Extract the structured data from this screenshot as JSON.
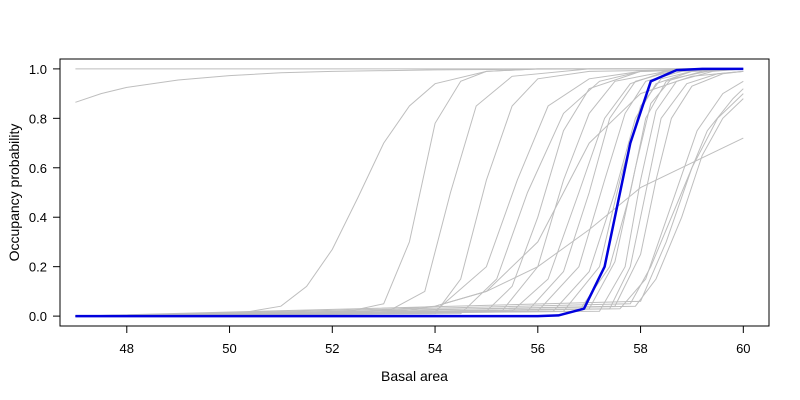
{
  "chart_data": {
    "type": "line",
    "title": "",
    "xlabel": "Basal area",
    "ylabel": "Occupancy probability",
    "xlim": [
      46.7,
      60.5
    ],
    "ylim": [
      -0.04,
      1.04
    ],
    "xticks": [
      48,
      50,
      52,
      54,
      56,
      58,
      60
    ],
    "xtick_labels": [
      "48",
      "50",
      "52",
      "54",
      "56",
      "58",
      "60"
    ],
    "yticks": [
      0.0,
      0.2,
      0.4,
      0.6,
      0.8,
      1.0
    ],
    "ytick_labels": [
      "0.0",
      "0.2",
      "0.4",
      "0.6",
      "0.8",
      "1.0"
    ],
    "grid": false,
    "legend": "none",
    "colors": {
      "mean": "#0000dd",
      "samples": "#bebebe"
    },
    "mean_curve": {
      "x": [
        47.0,
        48.0,
        49.0,
        50.0,
        51.0,
        52.0,
        53.0,
        54.0,
        55.0,
        55.5,
        56.0,
        56.4,
        56.9,
        57.3,
        57.8,
        58.2,
        58.7,
        59.2,
        60.0
      ],
      "y": [
        0.0,
        0.0,
        0.0,
        0.0,
        0.0,
        0.0,
        0.0,
        0.0,
        0.0,
        0.0,
        0.0,
        0.003,
        0.03,
        0.2,
        0.7,
        0.95,
        0.995,
        1.0,
        1.0
      ]
    },
    "sample_curves": [
      {
        "x": [
          47.0,
          47.5,
          48.0,
          49.0,
          50.0,
          51.0,
          52.0,
          54.0,
          56.0,
          58.0,
          60.0
        ],
        "y": [
          0.865,
          0.9,
          0.925,
          0.955,
          0.973,
          0.984,
          0.99,
          0.996,
          0.999,
          1.0,
          1.0
        ]
      },
      {
        "x": [
          47.0,
          60.0
        ],
        "y": [
          1.0,
          1.0
        ]
      },
      {
        "x": [
          47.0,
          50.0,
          51.0,
          51.5,
          52.0,
          52.5,
          53.0,
          53.5,
          54.0,
          55.0,
          56.0,
          60.0
        ],
        "y": [
          0.0,
          0.005,
          0.04,
          0.12,
          0.27,
          0.48,
          0.7,
          0.85,
          0.94,
          0.99,
          1.0,
          1.0
        ]
      },
      {
        "x": [
          47.0,
          52.0,
          53.0,
          53.5,
          54.0,
          54.5,
          55.0,
          56.0,
          60.0
        ],
        "y": [
          0.0,
          0.005,
          0.05,
          0.3,
          0.78,
          0.95,
          0.99,
          1.0,
          1.0
        ]
      },
      {
        "x": [
          47.0,
          53.0,
          53.8,
          54.3,
          54.8,
          55.5,
          57.0,
          60.0
        ],
        "y": [
          0.0,
          0.01,
          0.1,
          0.5,
          0.85,
          0.97,
          1.0,
          1.0
        ]
      },
      {
        "x": [
          47.0,
          54.0,
          54.5,
          55.0,
          55.5,
          56.0,
          57.0,
          60.0
        ],
        "y": [
          0.0,
          0.01,
          0.15,
          0.55,
          0.85,
          0.96,
          0.99,
          1.0
        ]
      },
      {
        "x": [
          47.0,
          54.0,
          55.0,
          55.6,
          56.2,
          57.0,
          58.0,
          60.0
        ],
        "y": [
          0.0,
          0.02,
          0.2,
          0.55,
          0.85,
          0.96,
          0.99,
          1.0
        ]
      },
      {
        "x": [
          47.0,
          53.0,
          54.0,
          55.0,
          56.0,
          57.0,
          58.0,
          59.0,
          60.0
        ],
        "y": [
          0.0,
          0.01,
          0.04,
          0.1,
          0.2,
          0.35,
          0.52,
          0.62,
          0.72
        ]
      },
      {
        "x": [
          47.0,
          54.5,
          55.2,
          55.8,
          56.5,
          57.2,
          58.0,
          60.0
        ],
        "y": [
          0.0,
          0.01,
          0.15,
          0.5,
          0.82,
          0.95,
          0.99,
          1.0
        ]
      },
      {
        "x": [
          47.0,
          55.0,
          55.5,
          56.0,
          56.5,
          57.0,
          58.0,
          60.0
        ],
        "y": [
          0.0,
          0.02,
          0.12,
          0.4,
          0.75,
          0.92,
          0.99,
          1.0
        ]
      },
      {
        "x": [
          47.0,
          55.3,
          56.0,
          56.5,
          57.0,
          57.5,
          58.5,
          60.0
        ],
        "y": [
          0.0,
          0.02,
          0.2,
          0.55,
          0.82,
          0.95,
          0.99,
          1.0
        ]
      },
      {
        "x": [
          47.0,
          55.5,
          56.2,
          56.8,
          57.3,
          57.8,
          58.5,
          60.0
        ],
        "y": [
          0.0,
          0.02,
          0.15,
          0.5,
          0.8,
          0.94,
          0.99,
          1.0
        ]
      },
      {
        "x": [
          47.0,
          55.8,
          56.5,
          57.0,
          57.4,
          57.9,
          58.6,
          60.0
        ],
        "y": [
          0.0,
          0.02,
          0.18,
          0.5,
          0.8,
          0.95,
          0.99,
          1.0
        ]
      },
      {
        "x": [
          47.0,
          56.0,
          56.8,
          57.3,
          57.7,
          58.1,
          58.8,
          60.0
        ],
        "y": [
          0.0,
          0.02,
          0.2,
          0.55,
          0.82,
          0.95,
          0.99,
          1.0
        ]
      },
      {
        "x": [
          47.0,
          56.3,
          57.0,
          57.5,
          57.9,
          58.3,
          59.0,
          60.0
        ],
        "y": [
          0.0,
          0.02,
          0.18,
          0.5,
          0.8,
          0.94,
          0.99,
          1.0
        ]
      },
      {
        "x": [
          47.0,
          56.5,
          57.2,
          57.6,
          58.0,
          58.4,
          59.0,
          60.0
        ],
        "y": [
          0.0,
          0.02,
          0.2,
          0.55,
          0.85,
          0.96,
          0.99,
          1.0
        ]
      },
      {
        "x": [
          47.0,
          56.8,
          57.4,
          57.8,
          58.1,
          58.5,
          59.2,
          60.0
        ],
        "y": [
          0.0,
          0.02,
          0.2,
          0.5,
          0.8,
          0.95,
          0.99,
          1.0
        ]
      },
      {
        "x": [
          47.0,
          57.0,
          57.5,
          57.9,
          58.2,
          58.6,
          59.3,
          60.0
        ],
        "y": [
          0.0,
          0.03,
          0.22,
          0.6,
          0.86,
          0.96,
          0.99,
          1.0
        ]
      },
      {
        "x": [
          47.0,
          57.2,
          57.7,
          58.0,
          58.3,
          58.7,
          59.4,
          60.0
        ],
        "y": [
          0.0,
          0.02,
          0.2,
          0.55,
          0.83,
          0.95,
          0.99,
          1.0
        ]
      },
      {
        "x": [
          47.0,
          57.4,
          57.8,
          58.1,
          58.4,
          58.9,
          59.5,
          60.0
        ],
        "y": [
          0.0,
          0.03,
          0.2,
          0.5,
          0.8,
          0.94,
          0.98,
          0.99
        ]
      },
      {
        "x": [
          47.0,
          57.5,
          58.0,
          58.3,
          58.6,
          59.0,
          59.6,
          60.0
        ],
        "y": [
          0.0,
          0.04,
          0.25,
          0.55,
          0.8,
          0.93,
          0.98,
          0.99
        ]
      },
      {
        "x": [
          47.0,
          57.6,
          58.1,
          58.6,
          59.1,
          59.6,
          60.0
        ],
        "y": [
          0.0,
          0.03,
          0.15,
          0.45,
          0.75,
          0.9,
          0.95
        ]
      },
      {
        "x": [
          47.0,
          57.8,
          58.2,
          58.8,
          59.3,
          59.8,
          60.0
        ],
        "y": [
          0.0,
          0.05,
          0.2,
          0.5,
          0.75,
          0.88,
          0.92
        ]
      },
      {
        "x": [
          47.0,
          57.9,
          58.3,
          58.8,
          59.2,
          59.6,
          60.0
        ],
        "y": [
          0.0,
          0.04,
          0.15,
          0.4,
          0.65,
          0.8,
          0.88
        ]
      },
      {
        "x": [
          47.0,
          58.0,
          58.5,
          59.0,
          59.5,
          60.0
        ],
        "y": [
          0.0,
          0.06,
          0.3,
          0.6,
          0.8,
          0.9
        ]
      },
      {
        "x": [
          47.0,
          52.0,
          54.0,
          55.0,
          56.0,
          57.0,
          58.0,
          59.0,
          60.0
        ],
        "y": [
          0.0,
          0.01,
          0.04,
          0.1,
          0.3,
          0.7,
          0.9,
          0.97,
          0.99
        ]
      }
    ]
  }
}
